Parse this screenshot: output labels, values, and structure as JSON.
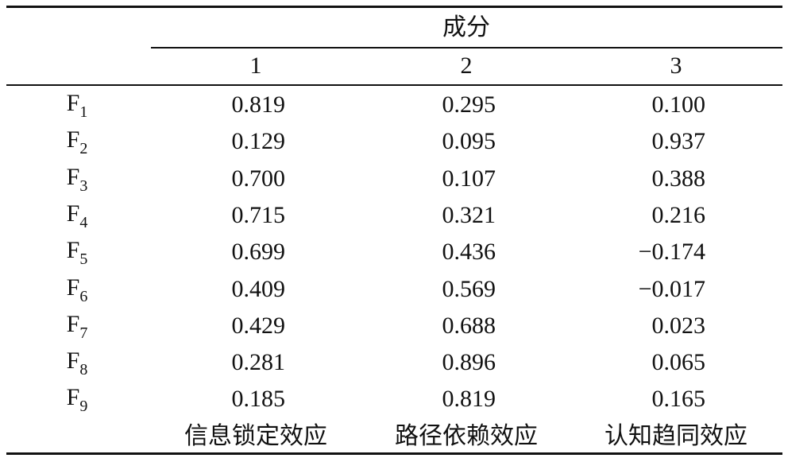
{
  "table": {
    "group_header": "成分",
    "columns": [
      "1",
      "2",
      "3"
    ],
    "rows": [
      {
        "label": "F",
        "sub": "1",
        "values": [
          "0.819",
          "0.295",
          "0.100"
        ]
      },
      {
        "label": "F",
        "sub": "2",
        "values": [
          "0.129",
          "0.095",
          "0.937"
        ]
      },
      {
        "label": "F",
        "sub": "3",
        "values": [
          "0.700",
          "0.107",
          "0.388"
        ]
      },
      {
        "label": "F",
        "sub": "4",
        "values": [
          "0.715",
          "0.321",
          "0.216"
        ]
      },
      {
        "label": "F",
        "sub": "5",
        "values": [
          "0.699",
          "0.436",
          "−0.174"
        ]
      },
      {
        "label": "F",
        "sub": "6",
        "values": [
          "0.409",
          "0.569",
          "−0.017"
        ]
      },
      {
        "label": "F",
        "sub": "7",
        "values": [
          "0.429",
          "0.688",
          "0.023"
        ]
      },
      {
        "label": "F",
        "sub": "8",
        "values": [
          "0.281",
          "0.896",
          "0.065"
        ]
      },
      {
        "label": "F",
        "sub": "9",
        "values": [
          "0.185",
          "0.819",
          "0.165"
        ]
      }
    ],
    "component_names": [
      "信息锁定效应",
      "路径依赖效应",
      "认知趋同效应"
    ]
  }
}
